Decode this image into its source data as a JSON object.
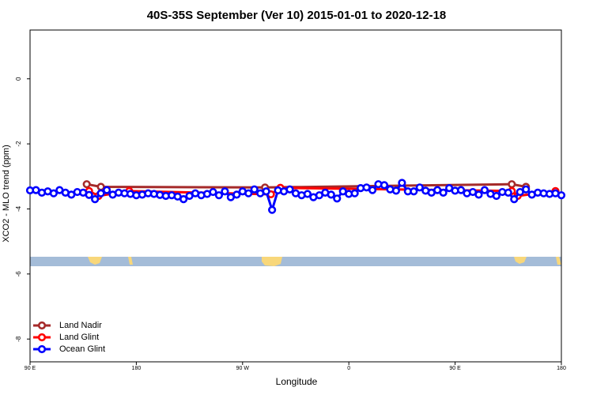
{
  "chart_data": {
    "type": "line",
    "title": "40S-35S September (Ver 10)   2015-01-01 to 2020-12-18",
    "x_label": "Longitude",
    "y_label": "XCO2 - MLO trend (ppm)",
    "xlim": [
      90,
      540
    ],
    "ylim": [
      -8.7,
      1.5
    ],
    "xticks": [
      {
        "value": 90,
        "label": "90 E"
      },
      180,
      {
        "value": 270,
        "label": "90 W"
      },
      {
        "value": 360,
        "label": "0"
      },
      {
        "value": 450,
        "label": "90 E"
      },
      {
        "value": 540,
        "label": "180"
      }
    ],
    "yticks": [
      0,
      -2,
      -4,
      -6,
      -8
    ],
    "legend": "bottom-left",
    "series": [
      {
        "name": "Land Nadir",
        "color": "#a52a2a",
        "x": [
          138,
          150,
          289,
          498,
          510
        ],
        "values": [
          -3.24,
          -3.32,
          -3.34,
          -3.24,
          -3.32
        ]
      },
      {
        "name": "Land Glint",
        "color": "#ff0000",
        "x": [
          140,
          148,
          174,
          294,
          302,
          498,
          503,
          535
        ],
        "values": [
          -3.45,
          -3.6,
          -3.45,
          -3.55,
          -3.35,
          -3.45,
          -3.6,
          -3.45
        ]
      },
      {
        "name": "Ocean Glint",
        "color": "#0000ff",
        "x": [
          90,
          95,
          100,
          105,
          110,
          115,
          120,
          125,
          130,
          135,
          140,
          145,
          150,
          155,
          160,
          165,
          170,
          175,
          180,
          185,
          190,
          195,
          200,
          205,
          210,
          215,
          220,
          225,
          230,
          235,
          240,
          245,
          250,
          255,
          260,
          265,
          270,
          275,
          280,
          285,
          290,
          295,
          300,
          305,
          310,
          315,
          320,
          325,
          330,
          335,
          340,
          345,
          350,
          355,
          360,
          365,
          370,
          375,
          380,
          385,
          390,
          395,
          400,
          405,
          410,
          415,
          420,
          425,
          430,
          435,
          440,
          445,
          450,
          455,
          460,
          465,
          470,
          475,
          480,
          485,
          490,
          495,
          500,
          505,
          510,
          515,
          520,
          525,
          530,
          535,
          540
        ],
        "values": [
          -3.43,
          -3.42,
          -3.5,
          -3.46,
          -3.52,
          -3.42,
          -3.5,
          -3.56,
          -3.48,
          -3.5,
          -3.57,
          -3.7,
          -3.52,
          -3.42,
          -3.56,
          -3.5,
          -3.52,
          -3.54,
          -3.58,
          -3.56,
          -3.52,
          -3.54,
          -3.57,
          -3.6,
          -3.58,
          -3.62,
          -3.7,
          -3.6,
          -3.52,
          -3.58,
          -3.54,
          -3.48,
          -3.58,
          -3.46,
          -3.64,
          -3.56,
          -3.46,
          -3.52,
          -3.4,
          -3.52,
          -3.46,
          -4.03,
          -3.43,
          -3.46,
          -3.4,
          -3.52,
          -3.58,
          -3.54,
          -3.64,
          -3.58,
          -3.5,
          -3.56,
          -3.68,
          -3.46,
          -3.54,
          -3.52,
          -3.36,
          -3.34,
          -3.42,
          -3.24,
          -3.27,
          -3.4,
          -3.44,
          -3.2,
          -3.46,
          -3.46,
          -3.34,
          -3.44,
          -3.5,
          -3.42,
          -3.5,
          -3.36,
          -3.44,
          -3.42,
          -3.52,
          -3.48,
          -3.56,
          -3.42,
          -3.54,
          -3.6,
          -3.48,
          -3.5,
          -3.7,
          -3.48,
          -3.4,
          -3.56,
          -3.5,
          -3.52,
          -3.54,
          -3.52,
          -3.58
        ]
      }
    ]
  }
}
